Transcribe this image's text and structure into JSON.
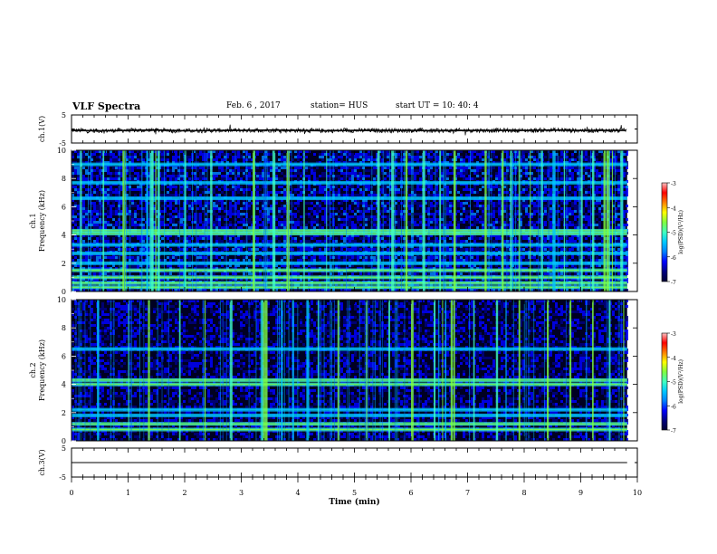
{
  "header": {
    "title": "VLF Spectra",
    "date": "Feb. 6 , 2017",
    "station": "station= HUS",
    "start": "start UT = 10: 40: 4"
  },
  "colormap": [
    "#000033",
    "#000080",
    "#0000ff",
    "#0080ff",
    "#00c8ff",
    "#40ffc0",
    "#80ff40",
    "#ffff00",
    "#ff8000",
    "#ff0000",
    "#ffc0c0"
  ],
  "chart_data": [
    {
      "type": "line",
      "panel": "ch1-waveform",
      "ylabel": "ch.1(V)",
      "ylim": [
        -5,
        5
      ],
      "yticks": [
        "5",
        "-5"
      ],
      "x": [
        0,
        0.5,
        1,
        1.5,
        2,
        2.5,
        3,
        3.5,
        4,
        4.5,
        5,
        5.5,
        6,
        6.5,
        7,
        7.5,
        8,
        8.5,
        9,
        9.5,
        9.8
      ],
      "values": [
        -0.5,
        -0.6,
        -0.5,
        -0.4,
        -0.6,
        -0.5,
        -0.5,
        -0.4,
        -0.5,
        -0.6,
        -0.5,
        -0.5,
        -0.5,
        -0.6,
        -0.5,
        -0.5,
        -0.5,
        -0.4,
        -0.5,
        -0.5,
        -0.5
      ]
    },
    {
      "type": "heatmap",
      "panel": "ch1-spectrogram",
      "ylabel": "ch.1\nFrequency (kHz)",
      "ylim": [
        0,
        10
      ],
      "yticks": [
        "0",
        "2",
        "4",
        "6",
        "8",
        "10"
      ],
      "xlim": [
        0,
        9.8
      ],
      "bands_khz": [
        0.3,
        0.6,
        1.0,
        1.5,
        2.0,
        2.7,
        3.3,
        4.1,
        4.3,
        6.6,
        7.7,
        9.0
      ],
      "sferics_min": [
        0.15,
        0.55,
        0.9,
        1.32,
        1.38,
        1.42,
        1.48,
        1.52,
        2.0,
        2.45,
        3.2,
        3.55,
        3.8,
        4.1,
        4.5,
        5.4,
        5.65,
        5.9,
        6.2,
        6.5,
        6.75,
        7.3,
        7.6,
        7.75,
        7.9,
        8.1,
        8.3,
        8.5,
        8.7,
        9.0,
        9.2,
        9.4,
        9.45,
        9.5,
        9.55,
        9.7
      ]
    },
    {
      "type": "heatmap",
      "panel": "ch2-spectrogram",
      "ylabel": "ch.2\nFrequency (kHz)",
      "ylim": [
        0,
        10
      ],
      "yticks": [
        "0",
        "2",
        "4",
        "6",
        "8",
        "10"
      ],
      "xlim": [
        0,
        9.8
      ],
      "bands_khz": [
        0.8,
        1.2,
        1.8,
        2.2,
        4.0,
        4.3,
        6.5
      ],
      "sferics_min": [
        0.45,
        1.0,
        1.35,
        1.9,
        2.35,
        2.8,
        3.35,
        3.38,
        3.42,
        3.7,
        3.9,
        4.15,
        4.35,
        4.7,
        5.2,
        5.6,
        6.0,
        6.4,
        6.55,
        6.6,
        6.7,
        6.75,
        7.1,
        7.5,
        7.9,
        8.4,
        8.8,
        9.2,
        9.5,
        9.75
      ]
    },
    {
      "type": "line",
      "panel": "ch3-waveform",
      "ylabel": "ch.3(V)",
      "ylim": [
        -5,
        5
      ],
      "yticks": [
        "5",
        "-5"
      ],
      "x": [
        0,
        9.8
      ],
      "values": [
        0,
        0
      ]
    }
  ],
  "xaxis": {
    "label": "Time (min)",
    "ticks": [
      "0",
      "1",
      "2",
      "3",
      "4",
      "5",
      "6",
      "7",
      "8",
      "9",
      "10"
    ]
  },
  "colorbar1": {
    "label": "log(PSD)(V²/Hz)",
    "ticks": [
      "-3",
      "-4",
      "-5",
      "-6",
      "-7"
    ]
  },
  "colorbar2": {
    "label": "log(PSD)(V²/Hz)",
    "ticks": [
      "-3",
      "-4",
      "-5",
      "-6",
      "-7"
    ]
  }
}
